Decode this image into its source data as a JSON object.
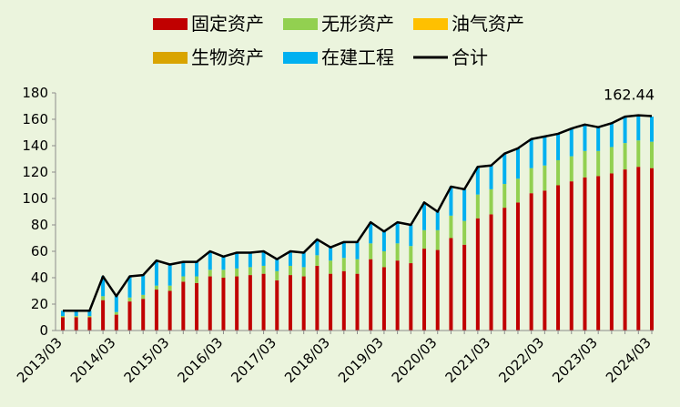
{
  "chart_data": {
    "type": "bar",
    "stacked": true,
    "title": "",
    "xlabel": "",
    "ylabel": "",
    "ylim": [
      0,
      180
    ],
    "yticks": [
      0,
      20,
      40,
      60,
      80,
      100,
      120,
      140,
      160,
      180
    ],
    "grid": false,
    "legend_position": "top",
    "x_tick_labels": [
      "2013/03",
      "2014/03",
      "2015/03",
      "2016/03",
      "2017/03",
      "2018/03",
      "2019/03",
      "2020/03",
      "2021/03",
      "2022/03",
      "2023/03",
      "2024/03"
    ],
    "categories": [
      "2013/03",
      "2013/06",
      "2013/09",
      "2013/12",
      "2014/03",
      "2014/06",
      "2014/09",
      "2014/12",
      "2015/03",
      "2015/06",
      "2015/09",
      "2015/12",
      "2016/03",
      "2016/06",
      "2016/09",
      "2016/12",
      "2017/03",
      "2017/06",
      "2017/09",
      "2017/12",
      "2018/03",
      "2018/06",
      "2018/09",
      "2018/12",
      "2019/03",
      "2019/06",
      "2019/09",
      "2019/12",
      "2020/03",
      "2020/06",
      "2020/09",
      "2020/12",
      "2021/03",
      "2021/06",
      "2021/09",
      "2021/12",
      "2022/03",
      "2022/06",
      "2022/09",
      "2022/12",
      "2023/03",
      "2023/06",
      "2023/09",
      "2023/12",
      "2024/03"
    ],
    "series": [
      {
        "name": "固定资产",
        "color": "#c00000",
        "values": [
          10,
          10,
          10,
          23,
          12,
          22,
          24,
          31,
          30,
          37,
          36,
          41,
          40,
          41,
          42,
          43,
          38,
          42,
          41,
          49,
          43,
          45,
          43,
          54,
          48,
          53,
          51,
          62,
          61,
          70,
          65,
          85,
          88,
          93,
          97,
          104,
          106,
          110,
          113,
          116,
          117,
          119,
          122,
          124,
          123
        ]
      },
      {
        "name": "无形资产",
        "color": "#92d050",
        "values": [
          1,
          1,
          1,
          3,
          2,
          3,
          3,
          3,
          4,
          4,
          5,
          5,
          6,
          6,
          6,
          6,
          7,
          7,
          7,
          8,
          10,
          10,
          11,
          12,
          12,
          13,
          13,
          14,
          15,
          17,
          18,
          18,
          19,
          18,
          18,
          19,
          19,
          19,
          19,
          20,
          19,
          20,
          20,
          20,
          20
        ]
      },
      {
        "name": "油气资产",
        "color": "#ffc000",
        "values": [
          0,
          0,
          0,
          0,
          0,
          0,
          0,
          0,
          0,
          0,
          0,
          0,
          0,
          0,
          0,
          0,
          0,
          0,
          0,
          0,
          0,
          0,
          0,
          0,
          0,
          0,
          0,
          0,
          0,
          0,
          0,
          0,
          0,
          0,
          0,
          0,
          0,
          0,
          0,
          0,
          0,
          0,
          0,
          0,
          0
        ]
      },
      {
        "name": "生物资产",
        "color": "#d9a400",
        "values": [
          0,
          0,
          0,
          0,
          0,
          0,
          0,
          0,
          0,
          0,
          0,
          0,
          0,
          0,
          0,
          0,
          0,
          0,
          0,
          0,
          0,
          0,
          0,
          0,
          0,
          0,
          0,
          0,
          0,
          0,
          0,
          0,
          0,
          0,
          0,
          0,
          0,
          0,
          0,
          0,
          0,
          0,
          0,
          0,
          0
        ]
      },
      {
        "name": "在建工程",
        "color": "#00b0f0",
        "values": [
          4,
          4,
          4,
          15,
          12,
          16,
          15,
          19,
          16,
          11,
          11,
          14,
          10,
          12,
          11,
          11,
          9,
          11,
          11,
          12,
          10,
          12,
          13,
          16,
          15,
          16,
          16,
          21,
          14,
          22,
          24,
          21,
          18,
          23,
          23,
          22,
          22,
          20,
          21,
          20,
          18,
          18,
          20,
          19,
          19
        ]
      }
    ],
    "line": {
      "name": "合计",
      "color": "#000000",
      "values": [
        15,
        15,
        15,
        41,
        26,
        41,
        42,
        53,
        50,
        52,
        52,
        60,
        56,
        59,
        59,
        60,
        54,
        60,
        59,
        69,
        63,
        67,
        67,
        82,
        75,
        82,
        80,
        97,
        90,
        109,
        107,
        124,
        125,
        134,
        138,
        145,
        147,
        149,
        153,
        156,
        154,
        157,
        162,
        163,
        162.44
      ]
    },
    "annotation": {
      "text": "162.44"
    }
  }
}
